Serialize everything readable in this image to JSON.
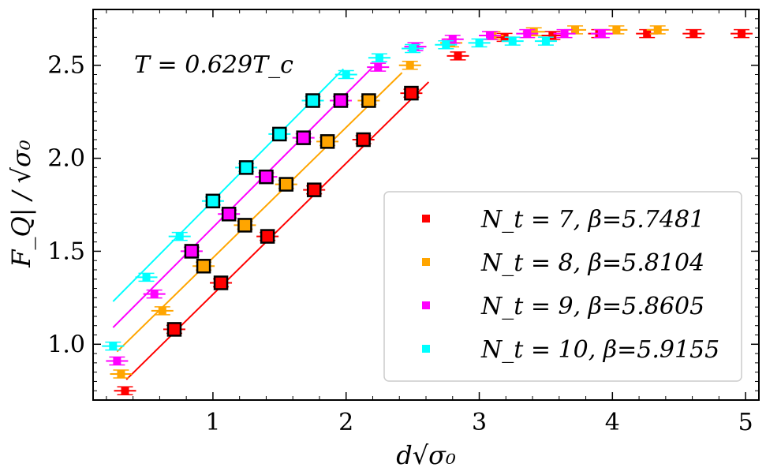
{
  "chart_data": {
    "type": "scatter",
    "title": "",
    "xlabel": "d√σ₀",
    "ylabel": "F_Q| / √σ₀",
    "annotation": "T = 0.629T_c",
    "xlim": [
      0.1,
      5.1
    ],
    "ylim": [
      0.7,
      2.8
    ],
    "xticks": [
      1,
      2,
      3,
      4,
      5
    ],
    "xtick_labels": [
      "1",
      "2",
      "3",
      "4",
      "5"
    ],
    "yticks": [
      1.0,
      1.5,
      2.0,
      2.5
    ],
    "ytick_labels": [
      "1.0",
      "1.5",
      "2.0",
      "2.5"
    ],
    "legend_location": "lower-right",
    "series": [
      {
        "name": "N_t = 7, β=5.7481",
        "color": "#ff0000",
        "x": [
          0.34,
          0.71,
          1.06,
          1.41,
          1.76,
          2.13,
          2.49,
          2.84,
          3.19,
          3.55,
          3.9,
          4.26,
          4.61,
          4.97
        ],
        "y": [
          0.75,
          1.08,
          1.33,
          1.58,
          1.83,
          2.1,
          2.35,
          2.55,
          2.65,
          2.66,
          2.67,
          2.67,
          2.67,
          2.67
        ],
        "highlighted": [
          1,
          2,
          3,
          4,
          5,
          6
        ],
        "fit_x": [
          0.35,
          2.62
        ],
        "fit_y": [
          0.81,
          2.41
        ]
      },
      {
        "name": "N_t = 8, β=5.8104",
        "color": "#ffa500",
        "x": [
          0.31,
          0.62,
          0.93,
          1.24,
          1.55,
          1.86,
          2.17,
          2.48,
          2.79,
          3.1,
          3.41,
          3.72,
          4.03,
          4.34
        ],
        "y": [
          0.84,
          1.18,
          1.42,
          1.64,
          1.86,
          2.09,
          2.31,
          2.5,
          2.62,
          2.66,
          2.68,
          2.69,
          2.69,
          2.69
        ],
        "highlighted": [
          2,
          3,
          4,
          5,
          6
        ],
        "fit_x": [
          0.28,
          2.42
        ],
        "fit_y": [
          0.96,
          2.46
        ]
      },
      {
        "name": "N_t = 9, β=5.8605",
        "color": "#ff00ff",
        "x": [
          0.28,
          0.56,
          0.84,
          1.12,
          1.4,
          1.68,
          1.96,
          2.24,
          2.52,
          2.8,
          3.08,
          3.36,
          3.64,
          3.92
        ],
        "y": [
          0.91,
          1.27,
          1.5,
          1.7,
          1.9,
          2.11,
          2.31,
          2.49,
          2.6,
          2.64,
          2.66,
          2.67,
          2.67,
          2.67
        ],
        "highlighted": [
          2,
          3,
          4,
          5,
          6
        ],
        "fit_x": [
          0.25,
          2.2
        ],
        "fit_y": [
          1.09,
          2.49
        ]
      },
      {
        "name": "N_t = 10, β=5.9155",
        "color": "#00ffff",
        "x": [
          0.25,
          0.5,
          0.75,
          1.0,
          1.25,
          1.5,
          1.75,
          2.0,
          2.25,
          2.5,
          2.75,
          3.0,
          3.25,
          3.5
        ],
        "y": [
          0.99,
          1.36,
          1.58,
          1.77,
          1.95,
          2.13,
          2.31,
          2.45,
          2.54,
          2.59,
          2.61,
          2.62,
          2.63,
          2.63
        ],
        "highlighted": [
          3,
          4,
          5,
          6
        ],
        "fit_x": [
          0.25,
          1.98
        ],
        "fit_y": [
          1.23,
          2.48
        ]
      }
    ]
  }
}
